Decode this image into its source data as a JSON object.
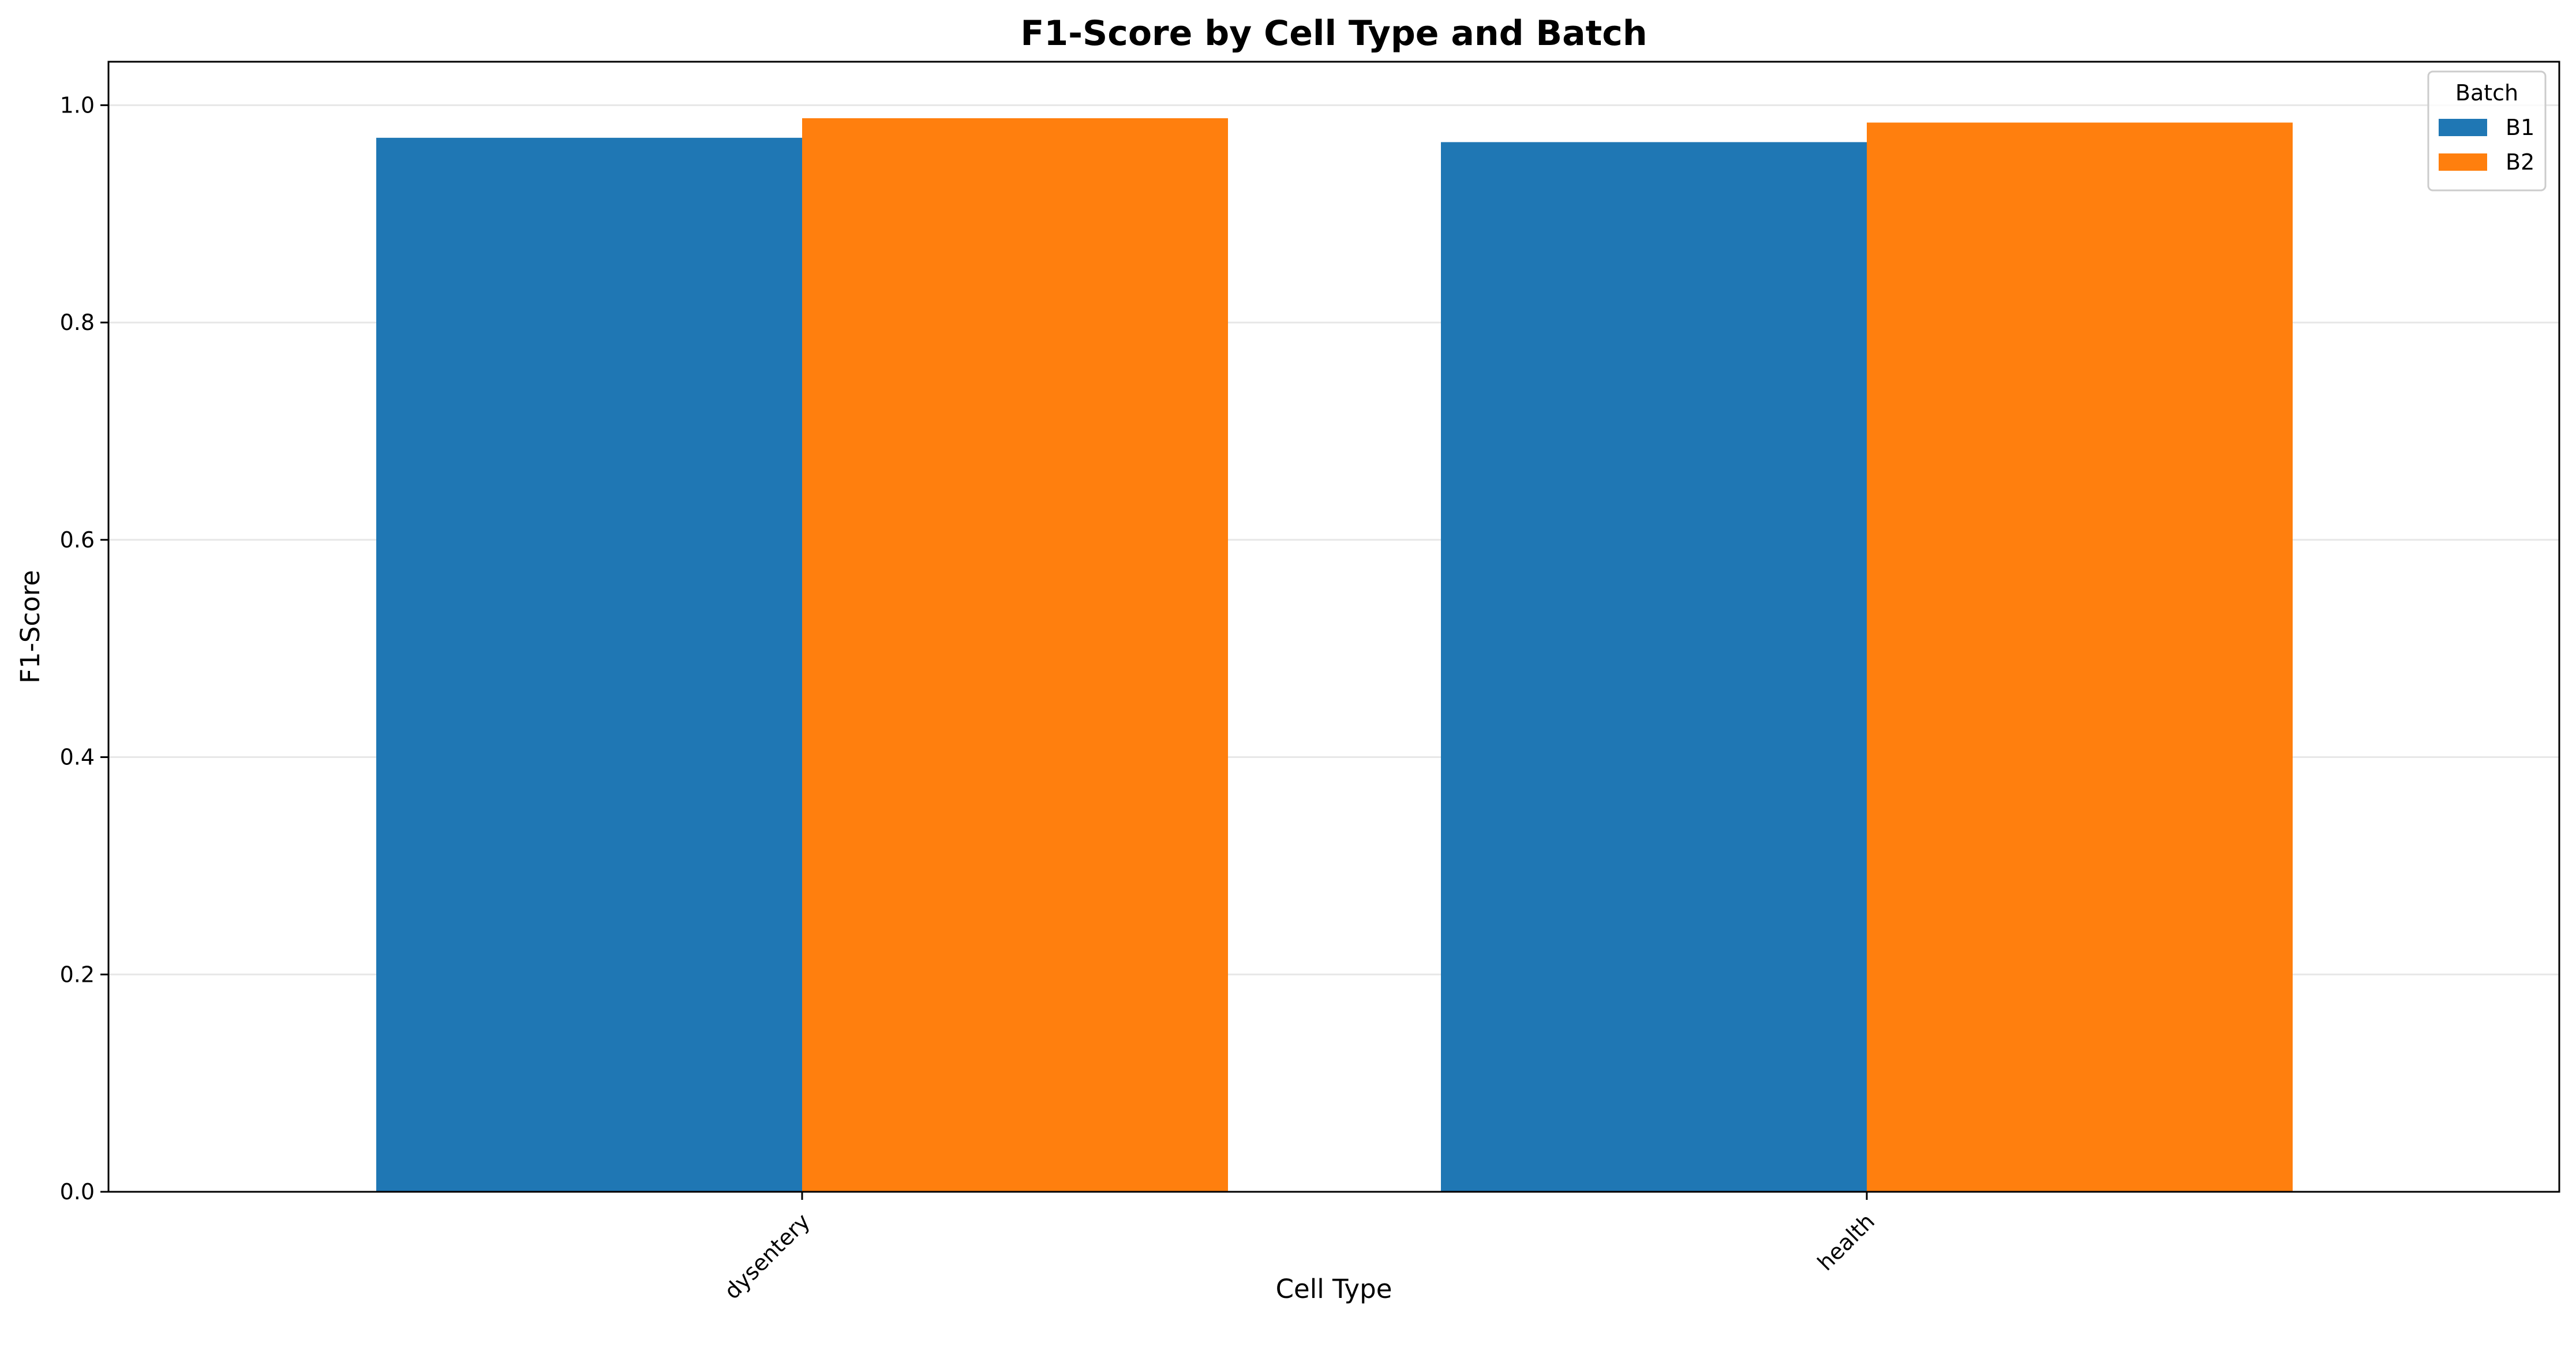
{
  "chart_data": {
    "type": "bar",
    "title": "F1-Score by Cell Type and Batch",
    "xlabel": "Cell Type",
    "ylabel": "F1-Score",
    "categories": [
      "dysentery",
      "health"
    ],
    "series": [
      {
        "name": "B1",
        "color": "#1f77b4",
        "values": [
          0.97,
          0.966
        ]
      },
      {
        "name": "B2",
        "color": "#ff7f0e",
        "values": [
          0.988,
          0.984
        ]
      }
    ],
    "ylim": [
      0,
      1.04
    ],
    "yticks": [
      0.0,
      0.2,
      0.4,
      0.6,
      0.8,
      1.0
    ],
    "ytick_labels": [
      "0.0",
      "0.2",
      "0.4",
      "0.6",
      "0.8",
      "1.0"
    ],
    "grid": "horizontal",
    "legend": {
      "title": "Batch",
      "placement": "top-right"
    }
  }
}
